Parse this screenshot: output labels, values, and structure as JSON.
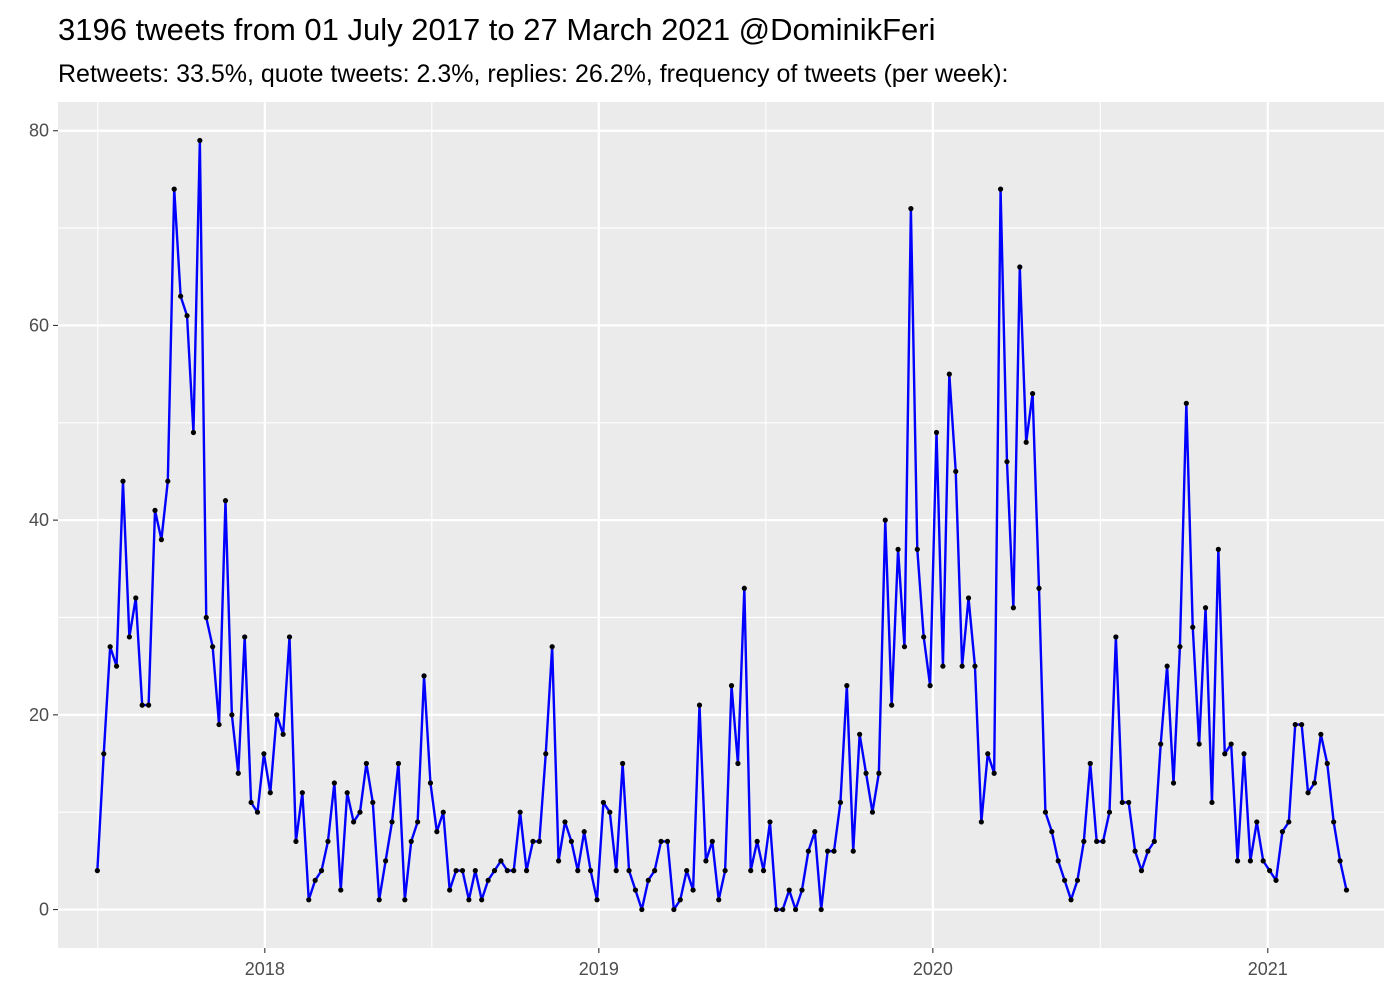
{
  "title": "3196 tweets from 01 July 2017 to 27 March 2021 @DominikFeri",
  "subtitle": "Retweets: 33.5%, quote tweets: 2.3%, replies: 26.2%, frequency of tweets (per week):",
  "colors": {
    "line": "#0000ff",
    "point": "#000000",
    "panel": "#ebebeb",
    "grid": "#ffffff"
  },
  "chart_data": {
    "type": "line",
    "x_start": "2017-07-02",
    "x_step_days": 7,
    "xlim": [
      "2017-05-20",
      "2021-05-08"
    ],
    "ylim": [
      -3.95,
      82.95
    ],
    "x_ticks": [
      {
        "date": "2018-01-01",
        "label": "2018"
      },
      {
        "date": "2019-01-01",
        "label": "2019"
      },
      {
        "date": "2020-01-01",
        "label": "2020"
      },
      {
        "date": "2021-01-01",
        "label": "2021"
      }
    ],
    "y_ticks": [
      0,
      20,
      40,
      60,
      80
    ],
    "grid": true,
    "xlabel": "",
    "ylabel": "",
    "values": [
      4,
      16,
      27,
      25,
      44,
      28,
      32,
      21,
      21,
      41,
      38,
      44,
      74,
      63,
      61,
      49,
      79,
      30,
      27,
      19,
      42,
      20,
      14,
      28,
      11,
      10,
      16,
      12,
      20,
      18,
      28,
      7,
      12,
      1,
      3,
      4,
      7,
      13,
      2,
      12,
      9,
      10,
      15,
      11,
      1,
      5,
      9,
      15,
      1,
      7,
      9,
      24,
      13,
      8,
      10,
      2,
      4,
      4,
      1,
      4,
      1,
      3,
      4,
      5,
      4,
      4,
      10,
      4,
      7,
      7,
      16,
      27,
      5,
      9,
      7,
      4,
      8,
      4,
      1,
      11,
      10,
      4,
      15,
      4,
      2,
      0,
      3,
      4,
      7,
      7,
      0,
      1,
      4,
      2,
      21,
      5,
      7,
      1,
      4,
      23,
      15,
      33,
      4,
      7,
      4,
      9,
      0,
      0,
      2,
      0,
      2,
      6,
      8,
      0,
      6,
      6,
      11,
      23,
      6,
      18,
      14,
      10,
      14,
      40,
      21,
      37,
      27,
      72,
      37,
      28,
      23,
      49,
      25,
      55,
      45,
      25,
      32,
      25,
      9,
      16,
      14,
      74,
      46,
      31,
      66,
      48,
      53,
      33,
      10,
      8,
      5,
      3,
      1,
      3,
      7,
      15,
      7,
      7,
      10,
      28,
      11,
      11,
      6,
      4,
      6,
      7,
      17,
      25,
      13,
      27,
      52,
      29,
      17,
      31,
      11,
      37,
      16,
      17,
      5,
      16,
      5,
      9,
      5,
      4,
      3,
      8,
      9,
      19,
      19,
      12,
      13,
      18,
      15,
      9,
      5,
      2
    ]
  }
}
